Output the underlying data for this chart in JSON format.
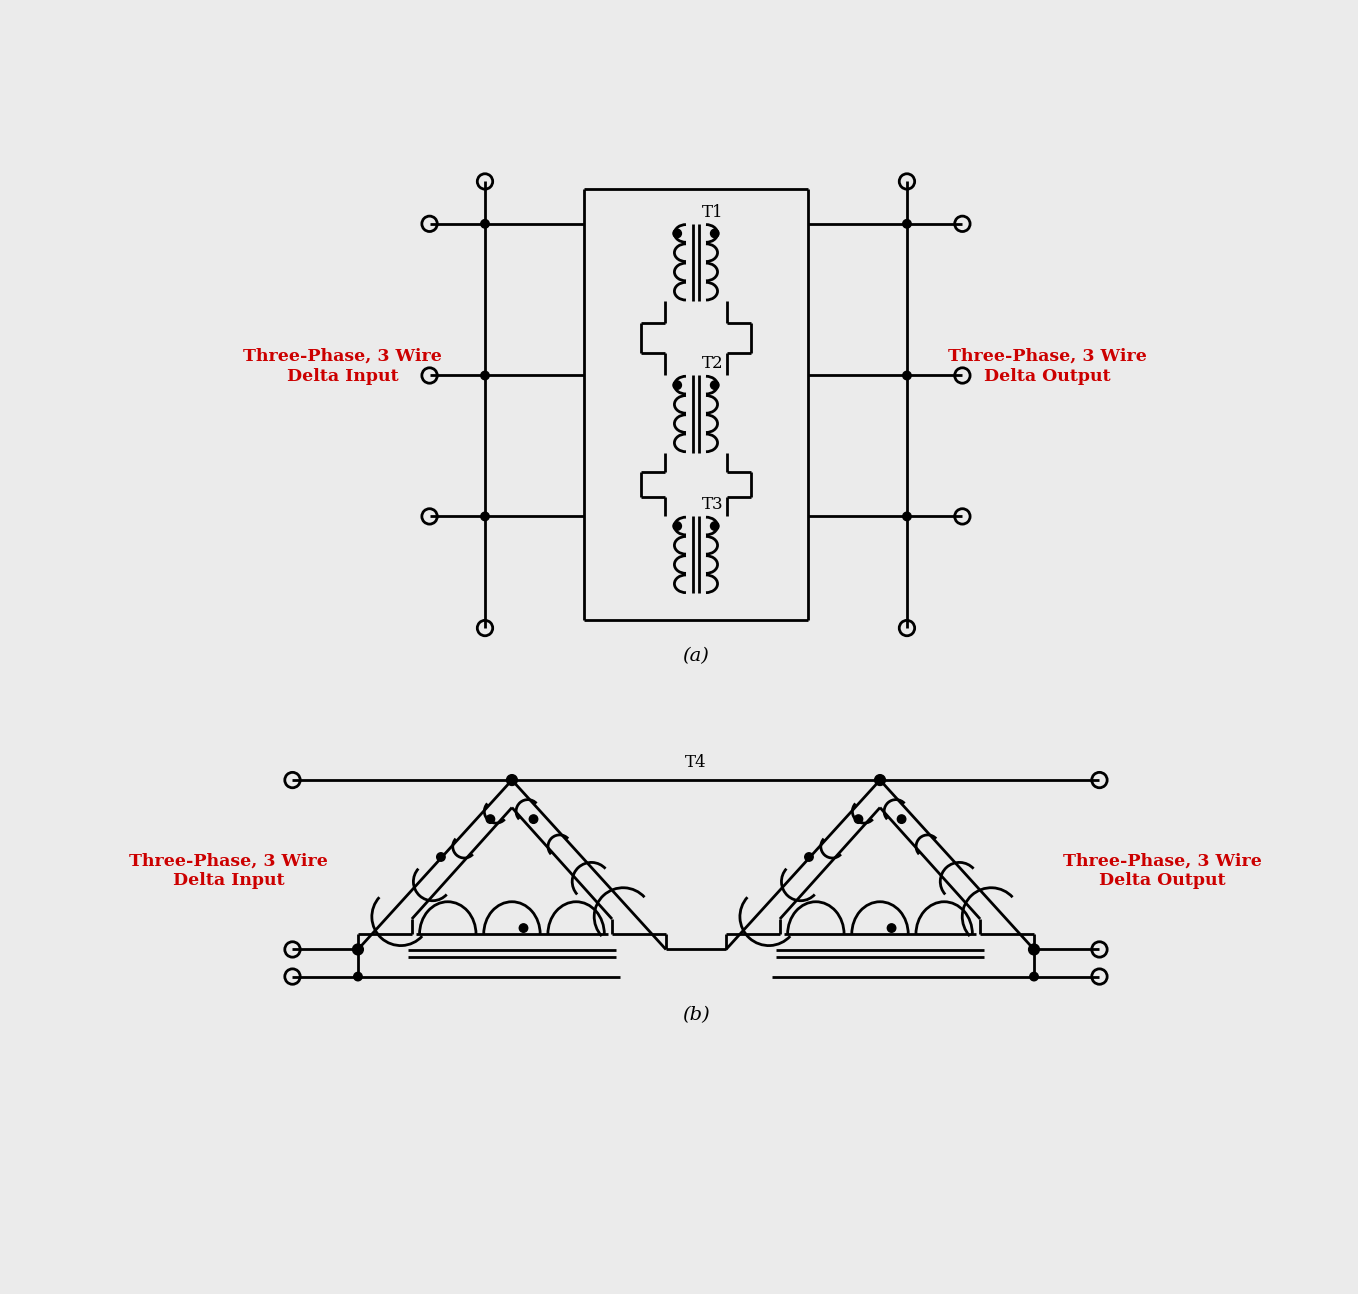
{
  "bg_color": "#ebebeb",
  "line_color": "#000000",
  "red_color": "#cc0000",
  "label_a_left": "Three-Phase, 3 Wire\nDelta Input",
  "label_a_right": "Three-Phase, 3 Wire\nDelta Output",
  "label_b_left": "Three-Phase, 3 Wire\nDelta Input",
  "label_b_right": "Three-Phase, 3 Wire\nDelta Output",
  "caption_a": "(a)",
  "caption_b": "(b)",
  "t1_label": "T1",
  "t2_label": "T2",
  "t3_label": "T3",
  "t4_label": "T4",
  "lw": 2.0,
  "dot_r": 0.055,
  "open_r": 0.1
}
